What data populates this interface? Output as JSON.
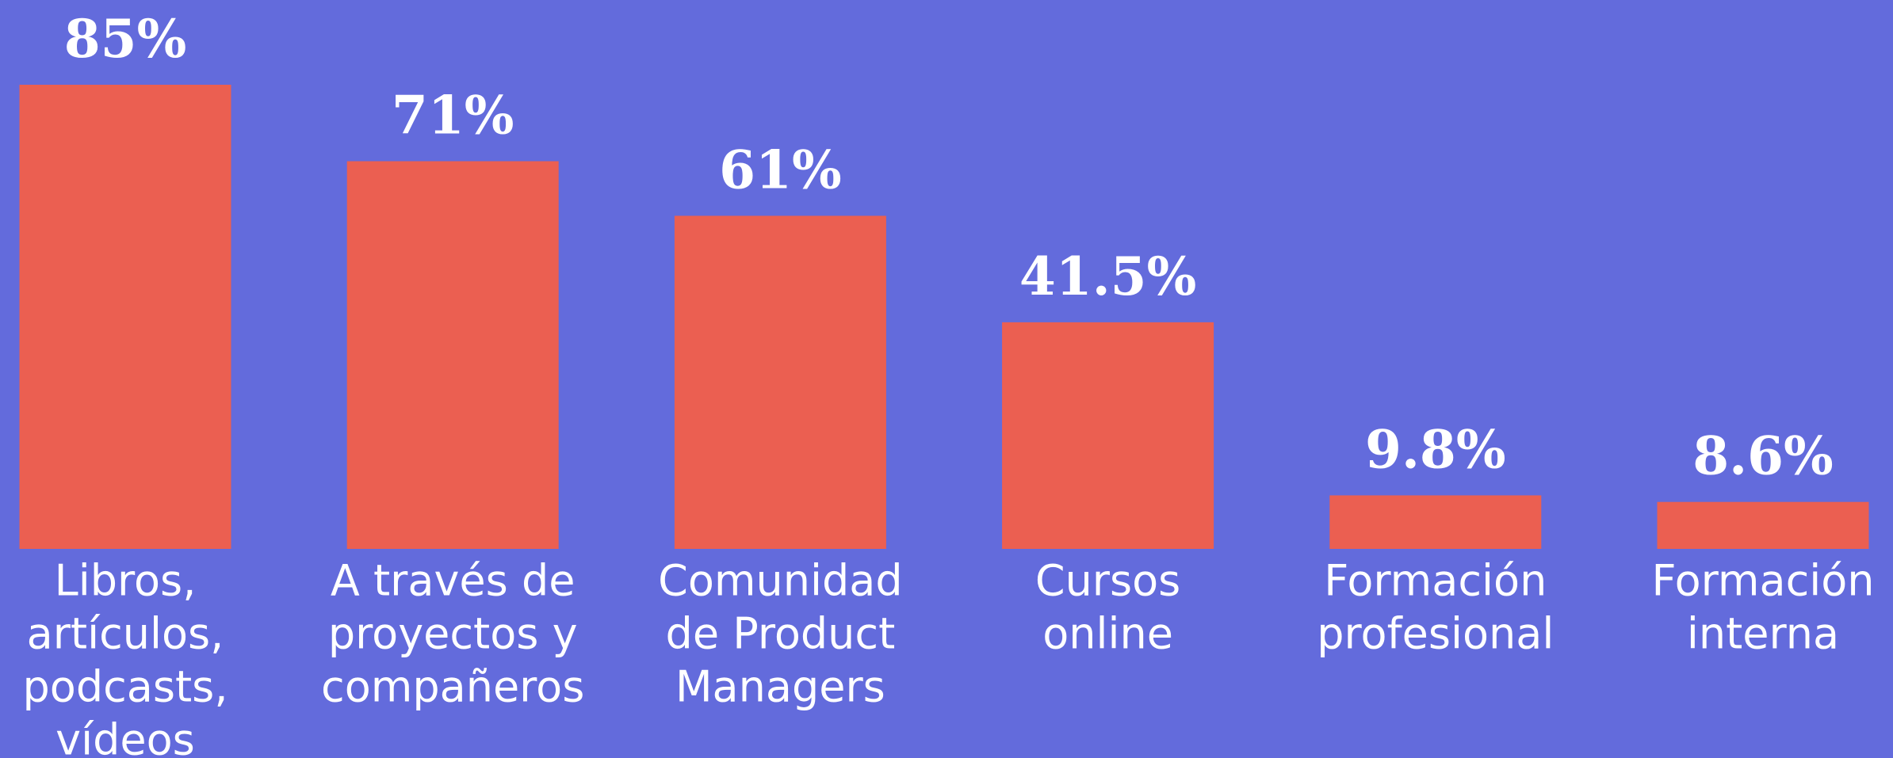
{
  "chart_data": {
    "type": "bar",
    "categories": [
      [
        "Libros,",
        "artículos,",
        "podcasts,",
        "vídeos"
      ],
      [
        "A través de",
        "proyectos y",
        "compañeros"
      ],
      [
        "Comunidad",
        "de Product",
        "Managers"
      ],
      [
        "Cursos",
        "online"
      ],
      [
        "Formación",
        "profesional"
      ],
      [
        "Formación",
        "interna"
      ]
    ],
    "values": [
      85,
      71,
      61,
      41.5,
      9.8,
      8.6
    ],
    "value_labels": [
      "85%",
      "71%",
      "61%",
      "41.5%",
      "9.8%",
      "8.6%"
    ],
    "color": "#eb5f51",
    "ylim": [
      0,
      85
    ]
  }
}
